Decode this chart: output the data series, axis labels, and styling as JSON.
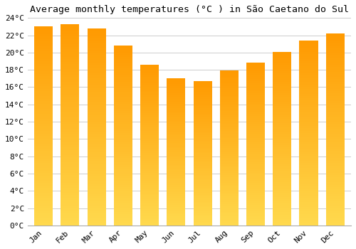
{
  "title": "Average monthly temperatures (°C ) in São Caetano do Sul",
  "months": [
    "Jan",
    "Feb",
    "Mar",
    "Apr",
    "May",
    "Jun",
    "Jul",
    "Aug",
    "Sep",
    "Oct",
    "Nov",
    "Dec"
  ],
  "values": [
    23.0,
    23.3,
    22.8,
    20.8,
    18.6,
    17.0,
    16.7,
    17.9,
    18.8,
    20.1,
    21.4,
    22.2
  ],
  "bar_color": "#FFA500",
  "bar_edge_color": "#FF8C00",
  "ylim": [
    0,
    24
  ],
  "ytick_step": 2,
  "background_color": "#FFFFFF",
  "grid_color": "#CCCCCC",
  "title_fontsize": 9.5,
  "tick_fontsize": 8,
  "font_family": "monospace"
}
